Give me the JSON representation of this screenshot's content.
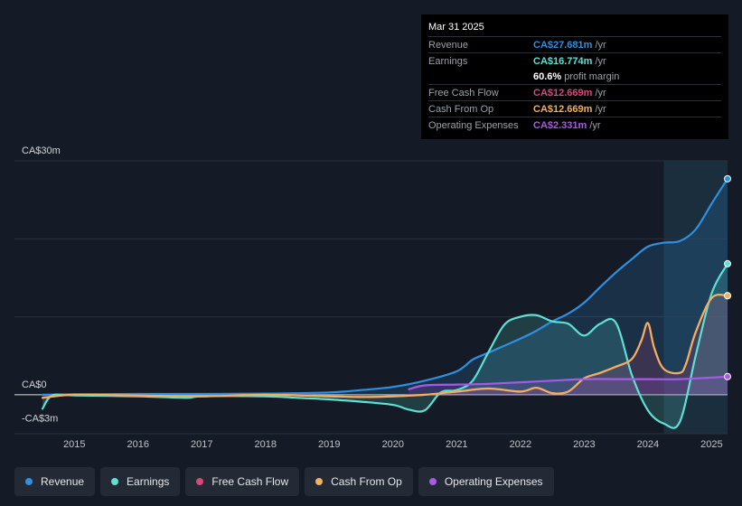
{
  "tooltip": {
    "date": "Mar 31 2025",
    "rows": [
      {
        "label": "Revenue",
        "value": "CA$27.681m",
        "unit": "/yr",
        "color": "#2f8fe0"
      },
      {
        "label": "Earnings",
        "value": "CA$16.774m",
        "unit": "/yr",
        "color": "#5ee0d2"
      },
      {
        "margin_value": "60.6%",
        "margin_label": "profit margin"
      },
      {
        "label": "Free Cash Flow",
        "value": "CA$12.669m",
        "unit": "/yr",
        "color": "#d6497c"
      },
      {
        "label": "Cash From Op",
        "value": "CA$12.669m",
        "unit": "/yr",
        "color": "#f0b060"
      },
      {
        "label": "Operating Expenses",
        "value": "CA$2.331m",
        "unit": "/yr",
        "color": "#a65be8"
      }
    ]
  },
  "legend": [
    {
      "label": "Revenue",
      "color": "#2f8fe0"
    },
    {
      "label": "Earnings",
      "color": "#5ee0d2"
    },
    {
      "label": "Free Cash Flow",
      "color": "#d6497c"
    },
    {
      "label": "Cash From Op",
      "color": "#f0b060"
    },
    {
      "label": "Operating Expenses",
      "color": "#a65be8"
    }
  ],
  "chart_data": {
    "type": "area",
    "y_unit": "CA$ millions",
    "ylim": [
      -5,
      30
    ],
    "y_tick_labels": [
      {
        "value": 30,
        "label": "CA$30m"
      },
      {
        "value": 0,
        "label": "CA$0"
      },
      {
        "value": -3,
        "label": "-CA$3m"
      }
    ],
    "xlim": [
      2014.5,
      2025.25
    ],
    "x_ticks": [
      2015,
      2016,
      2017,
      2018,
      2019,
      2020,
      2021,
      2022,
      2023,
      2024,
      2025
    ],
    "x_tick_labels": [
      "2015",
      "2016",
      "2017",
      "2018",
      "2019",
      "2020",
      "2021",
      "2022",
      "2023",
      "2024",
      "2025"
    ],
    "highlight_range": [
      2024.25,
      2025.25
    ],
    "series": [
      {
        "name": "Revenue",
        "color": "#2f8fe0",
        "fill": true,
        "x": [
          2014.5,
          2015.0,
          2016.0,
          2017.0,
          2018.0,
          2019.0,
          2019.5,
          2020.0,
          2020.5,
          2021.0,
          2021.25,
          2021.5,
          2022.0,
          2022.25,
          2022.5,
          2022.75,
          2023.0,
          2023.25,
          2023.5,
          2023.75,
          2024.0,
          2024.25,
          2024.5,
          2024.75,
          2025.0,
          2025.25
        ],
        "y": [
          0.0,
          0.05,
          0.1,
          0.1,
          0.15,
          0.3,
          0.6,
          1.0,
          1.8,
          3.0,
          4.5,
          5.4,
          7.2,
          8.2,
          9.4,
          10.4,
          11.8,
          13.8,
          15.7,
          17.4,
          19.0,
          19.5,
          19.7,
          21.2,
          24.5,
          27.7
        ]
      },
      {
        "name": "Earnings",
        "color": "#5ee0d2",
        "fill": true,
        "x": [
          2014.5,
          2014.65,
          2015.0,
          2016.0,
          2016.75,
          2017.0,
          2018.0,
          2018.5,
          2019.0,
          2019.5,
          2020.0,
          2020.25,
          2020.5,
          2020.75,
          2021.0,
          2021.25,
          2021.5,
          2021.75,
          2022.0,
          2022.25,
          2022.5,
          2022.75,
          2023.0,
          2023.25,
          2023.5,
          2023.75,
          2024.0,
          2024.25,
          2024.5,
          2024.75,
          2025.0,
          2025.25
        ],
        "y": [
          -1.8,
          -0.1,
          -0.1,
          -0.2,
          -0.4,
          -0.2,
          -0.2,
          -0.4,
          -0.6,
          -0.9,
          -1.3,
          -1.9,
          -2.0,
          0.3,
          0.6,
          1.8,
          5.5,
          9.0,
          10.0,
          10.2,
          9.4,
          9.1,
          7.6,
          9.1,
          9.2,
          2.5,
          -2.0,
          -3.7,
          -3.5,
          5.0,
          13.0,
          16.8
        ]
      },
      {
        "name": "Free Cash Flow",
        "color": "#d6497c",
        "fill": true,
        "x": [
          2014.5,
          2015.0,
          2016.0,
          2017.0,
          2018.0,
          2019.0,
          2019.5,
          2020.0,
          2020.5,
          2021.0,
          2021.5,
          2022.0,
          2022.25,
          2022.5,
          2022.75,
          2023.0,
          2023.25,
          2023.5,
          2023.75,
          2023.9,
          2024.0,
          2024.1,
          2024.25,
          2024.5,
          2024.6,
          2024.75,
          2025.0,
          2025.25
        ],
        "y": [
          -0.4,
          0.0,
          -0.1,
          -0.2,
          0.0,
          -0.2,
          -0.3,
          -0.2,
          0.0,
          0.4,
          0.8,
          0.4,
          0.9,
          0.2,
          0.4,
          2.1,
          2.8,
          3.6,
          4.6,
          7.0,
          9.2,
          6.0,
          3.3,
          2.8,
          4.0,
          8.0,
          12.4,
          12.7
        ]
      },
      {
        "name": "Cash From Op",
        "color": "#f0b060",
        "fill": false,
        "x": [
          2014.5,
          2015.0,
          2016.0,
          2017.0,
          2018.0,
          2019.0,
          2019.5,
          2020.0,
          2020.5,
          2021.0,
          2021.5,
          2022.0,
          2022.25,
          2022.5,
          2022.75,
          2023.0,
          2023.25,
          2023.5,
          2023.75,
          2023.9,
          2024.0,
          2024.1,
          2024.25,
          2024.5,
          2024.6,
          2024.75,
          2025.0,
          2025.25
        ],
        "y": [
          -0.4,
          0.0,
          -0.1,
          -0.2,
          0.0,
          -0.2,
          -0.3,
          -0.2,
          0.0,
          0.4,
          0.8,
          0.4,
          0.9,
          0.2,
          0.4,
          2.1,
          2.8,
          3.6,
          4.6,
          7.0,
          9.2,
          6.0,
          3.3,
          2.8,
          4.0,
          8.0,
          12.4,
          12.7
        ]
      },
      {
        "name": "Operating Expenses",
        "color": "#a65be8",
        "fill": true,
        "x": [
          2020.25,
          2020.5,
          2021.0,
          2021.5,
          2022.0,
          2022.5,
          2023.0,
          2023.5,
          2024.0,
          2024.5,
          2025.0,
          2025.25
        ],
        "y": [
          0.7,
          1.2,
          1.3,
          1.4,
          1.6,
          1.8,
          2.0,
          2.0,
          2.0,
          2.0,
          2.2,
          2.33
        ]
      }
    ]
  }
}
